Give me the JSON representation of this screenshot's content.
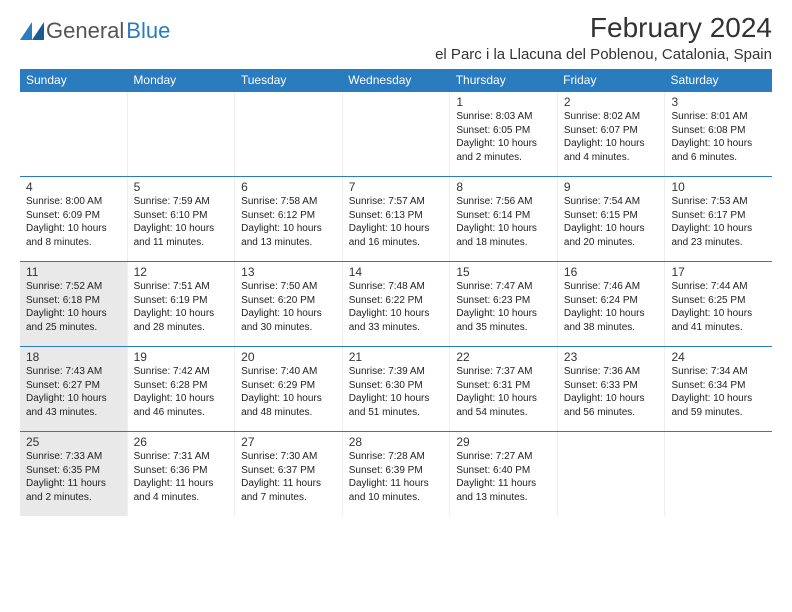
{
  "logo": {
    "text1": "General",
    "text2": "Blue"
  },
  "title": "February 2024",
  "location": "el Parc i la Llacuna del Poblenou, Catalonia, Spain",
  "colors": {
    "header_bg": "#2b7bbf",
    "header_text": "#ffffff",
    "shade_bg": "#e9e9e9",
    "row_border": "#2b7bbf",
    "text": "#333333"
  },
  "day_headers": [
    "Sunday",
    "Monday",
    "Tuesday",
    "Wednesday",
    "Thursday",
    "Friday",
    "Saturday"
  ],
  "weeks": [
    [
      {
        "blank": true
      },
      {
        "blank": true
      },
      {
        "blank": true
      },
      {
        "blank": true
      },
      {
        "num": "1",
        "sunrise": "Sunrise: 8:03 AM",
        "sunset": "Sunset: 6:05 PM",
        "daylight": "Daylight: 10 hours and 2 minutes."
      },
      {
        "num": "2",
        "sunrise": "Sunrise: 8:02 AM",
        "sunset": "Sunset: 6:07 PM",
        "daylight": "Daylight: 10 hours and 4 minutes."
      },
      {
        "num": "3",
        "sunrise": "Sunrise: 8:01 AM",
        "sunset": "Sunset: 6:08 PM",
        "daylight": "Daylight: 10 hours and 6 minutes."
      }
    ],
    [
      {
        "num": "4",
        "sunrise": "Sunrise: 8:00 AM",
        "sunset": "Sunset: 6:09 PM",
        "daylight": "Daylight: 10 hours and 8 minutes."
      },
      {
        "num": "5",
        "sunrise": "Sunrise: 7:59 AM",
        "sunset": "Sunset: 6:10 PM",
        "daylight": "Daylight: 10 hours and 11 minutes."
      },
      {
        "num": "6",
        "sunrise": "Sunrise: 7:58 AM",
        "sunset": "Sunset: 6:12 PM",
        "daylight": "Daylight: 10 hours and 13 minutes."
      },
      {
        "num": "7",
        "sunrise": "Sunrise: 7:57 AM",
        "sunset": "Sunset: 6:13 PM",
        "daylight": "Daylight: 10 hours and 16 minutes."
      },
      {
        "num": "8",
        "sunrise": "Sunrise: 7:56 AM",
        "sunset": "Sunset: 6:14 PM",
        "daylight": "Daylight: 10 hours and 18 minutes."
      },
      {
        "num": "9",
        "sunrise": "Sunrise: 7:54 AM",
        "sunset": "Sunset: 6:15 PM",
        "daylight": "Daylight: 10 hours and 20 minutes."
      },
      {
        "num": "10",
        "sunrise": "Sunrise: 7:53 AM",
        "sunset": "Sunset: 6:17 PM",
        "daylight": "Daylight: 10 hours and 23 minutes."
      }
    ],
    [
      {
        "num": "11",
        "shade": true,
        "sunrise": "Sunrise: 7:52 AM",
        "sunset": "Sunset: 6:18 PM",
        "daylight": "Daylight: 10 hours and 25 minutes."
      },
      {
        "num": "12",
        "sunrise": "Sunrise: 7:51 AM",
        "sunset": "Sunset: 6:19 PM",
        "daylight": "Daylight: 10 hours and 28 minutes."
      },
      {
        "num": "13",
        "sunrise": "Sunrise: 7:50 AM",
        "sunset": "Sunset: 6:20 PM",
        "daylight": "Daylight: 10 hours and 30 minutes."
      },
      {
        "num": "14",
        "sunrise": "Sunrise: 7:48 AM",
        "sunset": "Sunset: 6:22 PM",
        "daylight": "Daylight: 10 hours and 33 minutes."
      },
      {
        "num": "15",
        "sunrise": "Sunrise: 7:47 AM",
        "sunset": "Sunset: 6:23 PM",
        "daylight": "Daylight: 10 hours and 35 minutes."
      },
      {
        "num": "16",
        "sunrise": "Sunrise: 7:46 AM",
        "sunset": "Sunset: 6:24 PM",
        "daylight": "Daylight: 10 hours and 38 minutes."
      },
      {
        "num": "17",
        "sunrise": "Sunrise: 7:44 AM",
        "sunset": "Sunset: 6:25 PM",
        "daylight": "Daylight: 10 hours and 41 minutes."
      }
    ],
    [
      {
        "num": "18",
        "shade": true,
        "sunrise": "Sunrise: 7:43 AM",
        "sunset": "Sunset: 6:27 PM",
        "daylight": "Daylight: 10 hours and 43 minutes."
      },
      {
        "num": "19",
        "sunrise": "Sunrise: 7:42 AM",
        "sunset": "Sunset: 6:28 PM",
        "daylight": "Daylight: 10 hours and 46 minutes."
      },
      {
        "num": "20",
        "sunrise": "Sunrise: 7:40 AM",
        "sunset": "Sunset: 6:29 PM",
        "daylight": "Daylight: 10 hours and 48 minutes."
      },
      {
        "num": "21",
        "sunrise": "Sunrise: 7:39 AM",
        "sunset": "Sunset: 6:30 PM",
        "daylight": "Daylight: 10 hours and 51 minutes."
      },
      {
        "num": "22",
        "sunrise": "Sunrise: 7:37 AM",
        "sunset": "Sunset: 6:31 PM",
        "daylight": "Daylight: 10 hours and 54 minutes."
      },
      {
        "num": "23",
        "sunrise": "Sunrise: 7:36 AM",
        "sunset": "Sunset: 6:33 PM",
        "daylight": "Daylight: 10 hours and 56 minutes."
      },
      {
        "num": "24",
        "sunrise": "Sunrise: 7:34 AM",
        "sunset": "Sunset: 6:34 PM",
        "daylight": "Daylight: 10 hours and 59 minutes."
      }
    ],
    [
      {
        "num": "25",
        "shade": true,
        "sunrise": "Sunrise: 7:33 AM",
        "sunset": "Sunset: 6:35 PM",
        "daylight": "Daylight: 11 hours and 2 minutes."
      },
      {
        "num": "26",
        "sunrise": "Sunrise: 7:31 AM",
        "sunset": "Sunset: 6:36 PM",
        "daylight": "Daylight: 11 hours and 4 minutes."
      },
      {
        "num": "27",
        "sunrise": "Sunrise: 7:30 AM",
        "sunset": "Sunset: 6:37 PM",
        "daylight": "Daylight: 11 hours and 7 minutes."
      },
      {
        "num": "28",
        "sunrise": "Sunrise: 7:28 AM",
        "sunset": "Sunset: 6:39 PM",
        "daylight": "Daylight: 11 hours and 10 minutes."
      },
      {
        "num": "29",
        "sunrise": "Sunrise: 7:27 AM",
        "sunset": "Sunset: 6:40 PM",
        "daylight": "Daylight: 11 hours and 13 minutes."
      },
      {
        "blank": true
      },
      {
        "blank": true
      }
    ]
  ]
}
